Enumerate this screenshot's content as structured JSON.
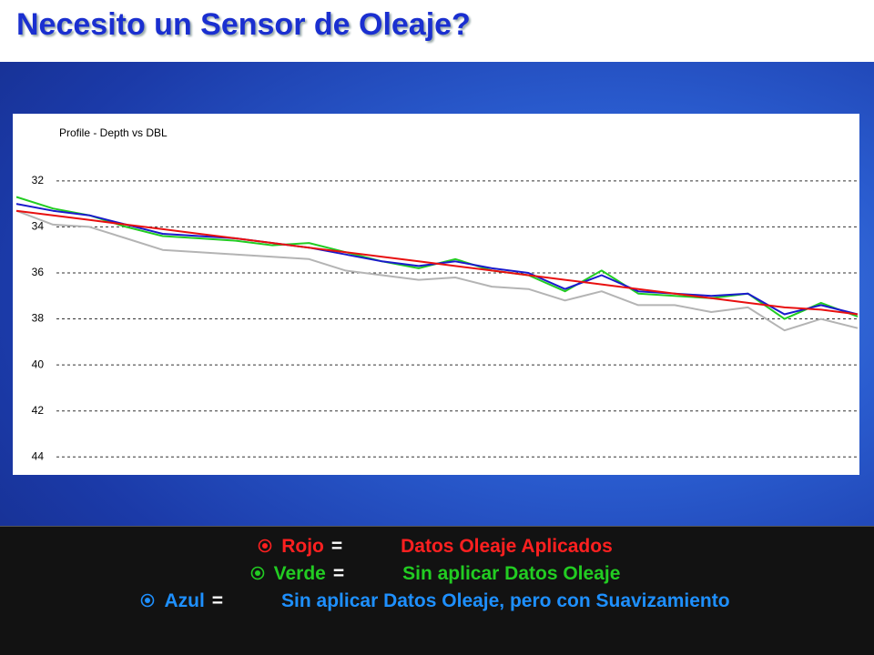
{
  "slide_title": "Necesito un Sensor de Oleaje?",
  "chart_data": {
    "type": "line",
    "title": "Profile - Depth vs DBL",
    "ylim": [
      29.2,
      44.7
    ],
    "y_inverted": true,
    "yticks": [
      32,
      34,
      36,
      38,
      40,
      42,
      44
    ],
    "grid": true,
    "legend_separator": "=",
    "series": [
      {
        "color": "#b4b4b4",
        "values": [
          33.3,
          33.9,
          34.0,
          34.5,
          35.0,
          35.1,
          35.2,
          35.3,
          35.4,
          35.9,
          36.1,
          36.3,
          36.2,
          36.6,
          36.7,
          37.2,
          36.8,
          37.4,
          37.4,
          37.7,
          37.5,
          38.5,
          38.0,
          38.4
        ]
      },
      {
        "name": "Verde",
        "description": "Sin aplicar Datos Oleaje",
        "color": "#22cc22",
        "values": [
          32.7,
          33.2,
          33.5,
          34.0,
          34.4,
          34.5,
          34.6,
          34.8,
          34.7,
          35.1,
          35.5,
          35.8,
          35.4,
          35.9,
          36.1,
          36.8,
          35.9,
          36.9,
          37.0,
          37.1,
          36.9,
          38.0,
          37.3,
          37.9
        ]
      },
      {
        "name": "Azul",
        "description": "Sin aplicar Datos Oleaje, pero con Suavizamiento",
        "color": "#1a1acc",
        "legend_color": "#1e90ff",
        "values": [
          33.0,
          33.3,
          33.5,
          33.9,
          34.3,
          34.4,
          34.5,
          34.7,
          34.9,
          35.2,
          35.5,
          35.7,
          35.5,
          35.8,
          36.0,
          36.7,
          36.1,
          36.8,
          36.9,
          37.0,
          36.9,
          37.8,
          37.4,
          37.8
        ]
      },
      {
        "name": "Rojo",
        "description": "Datos Oleaje Aplicados",
        "color": "#e81010",
        "legend_color": "#ff2020",
        "values": [
          33.3,
          33.5,
          33.7,
          33.9,
          34.1,
          34.3,
          34.5,
          34.7,
          34.9,
          35.1,
          35.3,
          35.5,
          35.7,
          35.9,
          36.1,
          36.3,
          36.5,
          36.7,
          36.9,
          37.1,
          37.3,
          37.5,
          37.6,
          37.8
        ]
      }
    ],
    "legend_order": [
      3,
      1,
      2
    ]
  }
}
